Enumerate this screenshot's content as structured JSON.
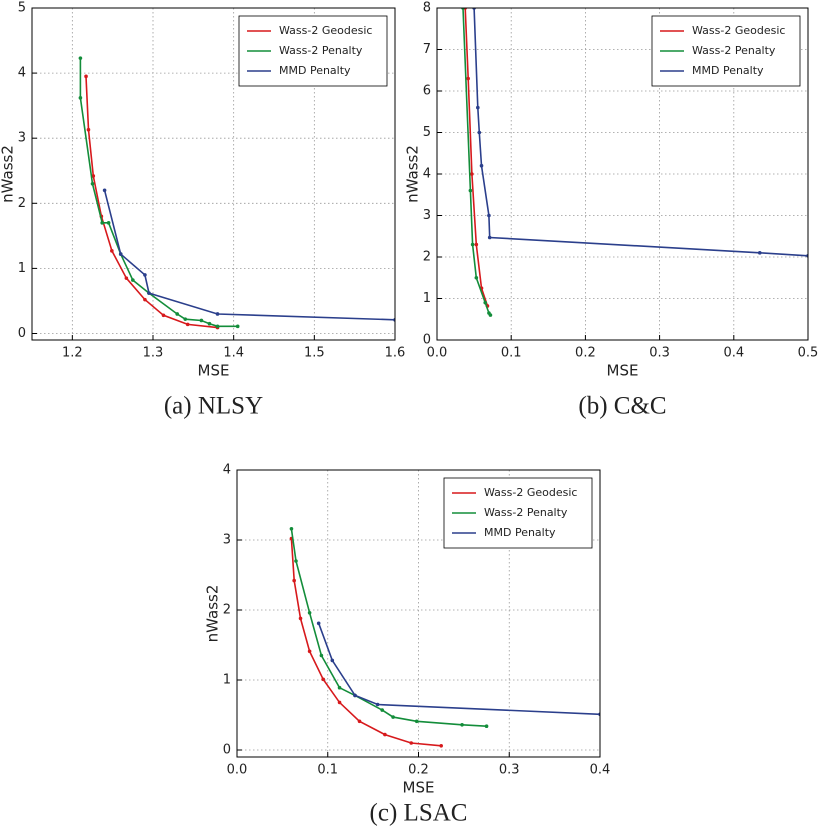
{
  "chart_data": [
    {
      "type": "line",
      "caption": "(a) NLSY",
      "x_label": "MSE",
      "y_label": "nWass2",
      "xlim": [
        1.15,
        1.6
      ],
      "ylim": [
        -0.1,
        5
      ],
      "xticks": [
        1.2,
        1.3,
        1.4,
        1.5,
        1.6
      ],
      "yticks": [
        0,
        1,
        2,
        3,
        4,
        5
      ],
      "grid": true,
      "legend": "upper right",
      "series": [
        {
          "name": "Wass-2 Geodesic",
          "color": "#d7191c",
          "x": [
            1.217,
            1.22,
            1.226,
            1.236,
            1.249,
            1.267,
            1.29,
            1.313,
            1.343,
            1.38
          ],
          "values": [
            3.95,
            3.13,
            2.42,
            1.8,
            1.27,
            0.85,
            0.52,
            0.28,
            0.14,
            0.09
          ]
        },
        {
          "name": "Wass-2 Penalty",
          "color": "#138d3a",
          "x": [
            1.21,
            1.21,
            1.225,
            1.237,
            1.245,
            1.26,
            1.275,
            1.295,
            1.33,
            1.34,
            1.36,
            1.37,
            1.38,
            1.405
          ],
          "values": [
            4.23,
            3.62,
            2.3,
            1.7,
            1.7,
            1.22,
            0.82,
            0.62,
            0.3,
            0.22,
            0.2,
            0.15,
            0.11,
            0.11
          ]
        },
        {
          "name": "MMD Penalty",
          "color": "#2b3f8c",
          "x": [
            1.24,
            1.26,
            1.29,
            1.295,
            1.38,
            1.6
          ],
          "values": [
            2.2,
            1.22,
            0.9,
            0.62,
            0.3,
            0.21
          ]
        }
      ]
    },
    {
      "type": "line",
      "caption": "(b) C&C",
      "x_label": "MSE",
      "y_label": "nWass2",
      "xlim": [
        0,
        0.5
      ],
      "ylim": [
        0,
        8
      ],
      "xticks": [
        {
          "value": 0,
          "label": "0.0"
        },
        0.1,
        0.2,
        0.3,
        0.4,
        0.5
      ],
      "yticks": [
        0,
        1,
        2,
        3,
        4,
        5,
        6,
        7,
        8
      ],
      "grid": true,
      "legend": "upper right",
      "series": [
        {
          "name": "Wass-2 Geodesic",
          "color": "#d7191c",
          "x": [
            0.038,
            0.042,
            0.047,
            0.053,
            0.06,
            0.068
          ],
          "values": [
            8,
            6.3,
            4.0,
            2.3,
            1.25,
            0.82
          ]
        },
        {
          "name": "Wass-2 Penalty",
          "color": "#138d3a",
          "x": [
            0.035,
            0.045,
            0.048,
            0.053,
            0.065,
            0.07,
            0.072
          ],
          "values": [
            8,
            3.6,
            2.3,
            1.5,
            0.9,
            0.65,
            0.6
          ]
        },
        {
          "name": "MMD Penalty",
          "color": "#2b3f8c",
          "x": [
            0.05,
            0.055,
            0.057,
            0.06,
            0.07,
            0.071,
            0.435,
            0.5
          ],
          "values": [
            8,
            5.6,
            5.0,
            4.2,
            3.0,
            2.47,
            2.1,
            2.03
          ]
        }
      ]
    },
    {
      "type": "line",
      "caption": "(c) LSAC",
      "x_label": "MSE",
      "y_label": "nWass2",
      "xlim": [
        0,
        0.4
      ],
      "ylim": [
        -0.1,
        4
      ],
      "xticks": [
        {
          "value": 0,
          "label": "0.0"
        },
        0.1,
        0.2,
        0.3,
        0.4
      ],
      "yticks": [
        0,
        1,
        2,
        3,
        4
      ],
      "grid": true,
      "legend": "upper right",
      "series": [
        {
          "name": "Wass-2 Geodesic",
          "color": "#d7191c",
          "x": [
            0.06,
            0.063,
            0.07,
            0.08,
            0.095,
            0.113,
            0.135,
            0.163,
            0.192,
            0.225
          ],
          "values": [
            3.02,
            2.42,
            1.88,
            1.41,
            1.01,
            0.68,
            0.41,
            0.22,
            0.1,
            0.06
          ]
        },
        {
          "name": "Wass-2 Penalty",
          "color": "#138d3a",
          "x": [
            0.06,
            0.065,
            0.08,
            0.093,
            0.113,
            0.13,
            0.16,
            0.172,
            0.198,
            0.248,
            0.275
          ],
          "values": [
            3.16,
            2.7,
            1.96,
            1.35,
            0.89,
            0.78,
            0.57,
            0.47,
            0.41,
            0.36,
            0.34
          ]
        },
        {
          "name": "MMD Penalty",
          "color": "#2b3f8c",
          "x": [
            0.09,
            0.105,
            0.13,
            0.155,
            0.4
          ],
          "values": [
            1.81,
            1.28,
            0.78,
            0.65,
            0.51
          ]
        }
      ]
    }
  ]
}
